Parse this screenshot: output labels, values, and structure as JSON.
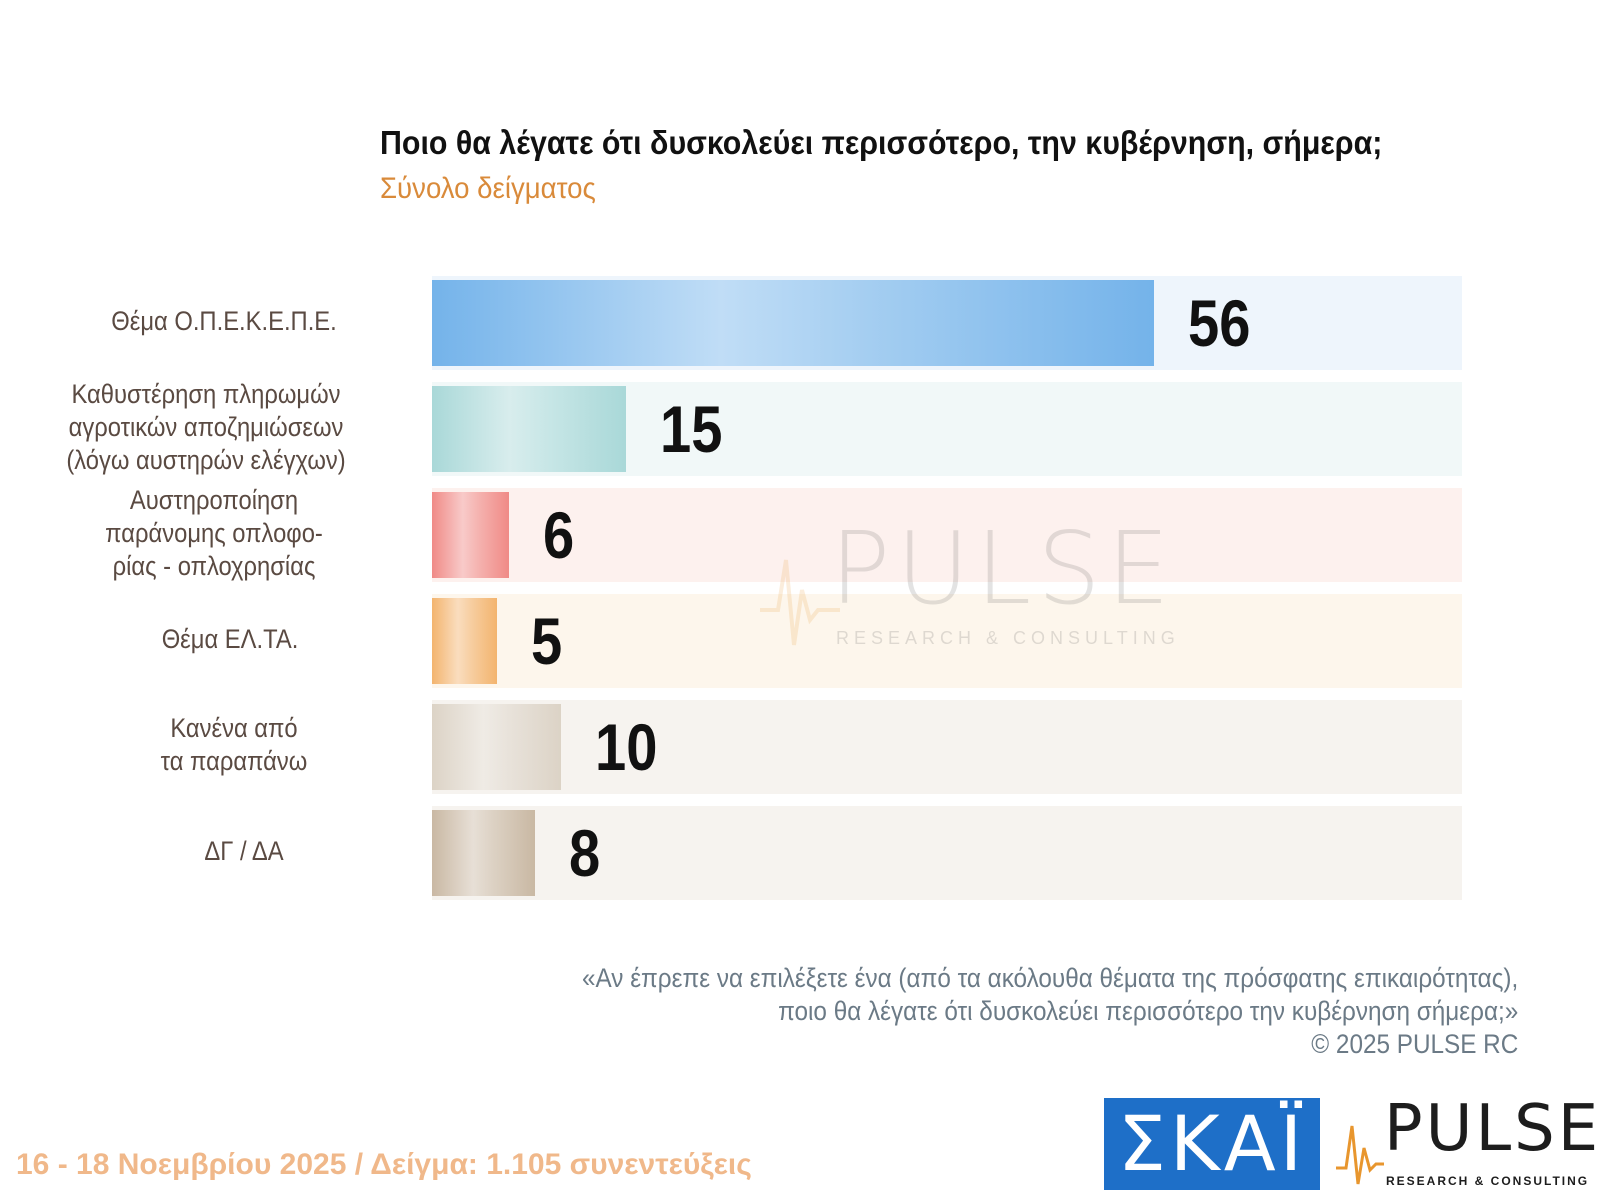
{
  "title": "Ποιο θα λέγατε ότι δυσκολεύει περισσότερο, την κυβέρνηση, σήμερα;",
  "subtitle": "Σύνολο δείγματος",
  "chart_data": {
    "type": "bar",
    "orientation": "horizontal",
    "title": "Ποιο θα λέγατε ότι δυσκολεύει περισσότερο, την κυβέρνηση, σήμερα;",
    "subtitle": "Σύνολο δείγματος",
    "categories": [
      [
        "Θέμα Ο.Π.Ε.Κ.Ε.Π.Ε."
      ],
      [
        "Καθυστέρηση πληρωμών",
        "αγροτικών αποζημιώσεων",
        "(λόγω αυστηρών ελέγχων)"
      ],
      [
        "Αυστηροποίηση",
        "παράνομης οπλοφο-",
        "ρίας - οπλοχρησίας"
      ],
      [
        "Θέμα ΕΛ.ΤΑ."
      ],
      [
        "Κανένα από",
        "τα παραπάνω"
      ],
      [
        "ΔΓ / ΔΑ"
      ]
    ],
    "values": [
      56,
      15,
      6,
      5,
      10,
      8
    ],
    "xlim": [
      0,
      80
    ],
    "grid": false,
    "legend": "none",
    "colors": [
      "#74b3ea",
      "#a9d8d8",
      "#f08a86",
      "#f3b46e",
      "#dcd3c6",
      "#c9b8a3"
    ],
    "row_bg_colors": [
      "#eef5fc",
      "#f1f8f8",
      "#fdf1ee",
      "#fdf6ec",
      "#f6f3ef",
      "#f6f3ef"
    ]
  },
  "note": {
    "lines": [
      "«Αν έπρεπε να επιλέξετε ένα (από τα ακόλουθα θέματα της πρόσφατης επικαιρότητας),",
      "ποιο θα λέγατε ότι δυσκολεύει περισσότερο την κυβέρνηση σήμερα;»",
      "©  2025  PULSE RC"
    ]
  },
  "footer": "16 - 18 Νοεμβρίου 2025  /  Δείγμα:  1.105 συνεντεύξεις",
  "watermark": {
    "word": "PULSE",
    "sub": "RESEARCH & CONSULTING"
  },
  "logos": {
    "skai": {
      "text": "ΣΚΑΪ",
      "color": "#1e6fc8"
    },
    "pulse": {
      "word": "PULSE",
      "sub": "RESEARCH & CONSULTING",
      "accent": "#e8962e"
    }
  }
}
